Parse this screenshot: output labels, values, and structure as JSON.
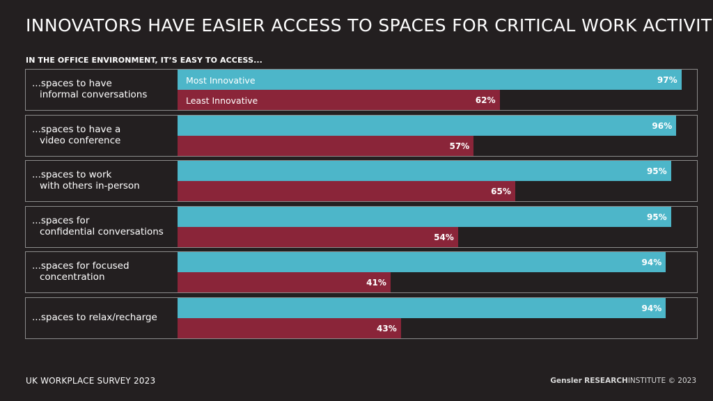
{
  "title": "INNOVATORS HAVE EASIER ACCESS TO SPACES FOR CRITICAL WORK ACTIVITIES",
  "subtitle": "IN THE OFFICE ENVIRONMENT, IT’S EASY TO ACCESS...",
  "footer": {
    "survey": "UK WORKPLACE SURVEY 2023",
    "brand": "Gensler",
    "research": "RESEARCH",
    "institute": "INSTITUTE",
    "copyright": "© 2023"
  },
  "colors": {
    "most": "#4db6c9",
    "least": "#8a2539",
    "background": "#231f20"
  },
  "chart_data": {
    "type": "bar",
    "orientation": "horizontal",
    "xlim": [
      0,
      100
    ],
    "value_suffix": "%",
    "categories": [
      [
        "...spaces to have",
        "informal conversations"
      ],
      [
        "...spaces to have a",
        "video conference"
      ],
      [
        "...spaces to work",
        "with others in-person"
      ],
      [
        "...spaces for",
        "confidential conversations"
      ],
      [
        "...spaces for focused",
        "concentration"
      ],
      [
        "...spaces to relax/recharge"
      ]
    ],
    "series": [
      {
        "name": "Most Innovative",
        "values": [
          97,
          96,
          95,
          95,
          94,
          94
        ]
      },
      {
        "name": "Least Innovative",
        "values": [
          62,
          57,
          65,
          54,
          41,
          43
        ]
      }
    ]
  }
}
